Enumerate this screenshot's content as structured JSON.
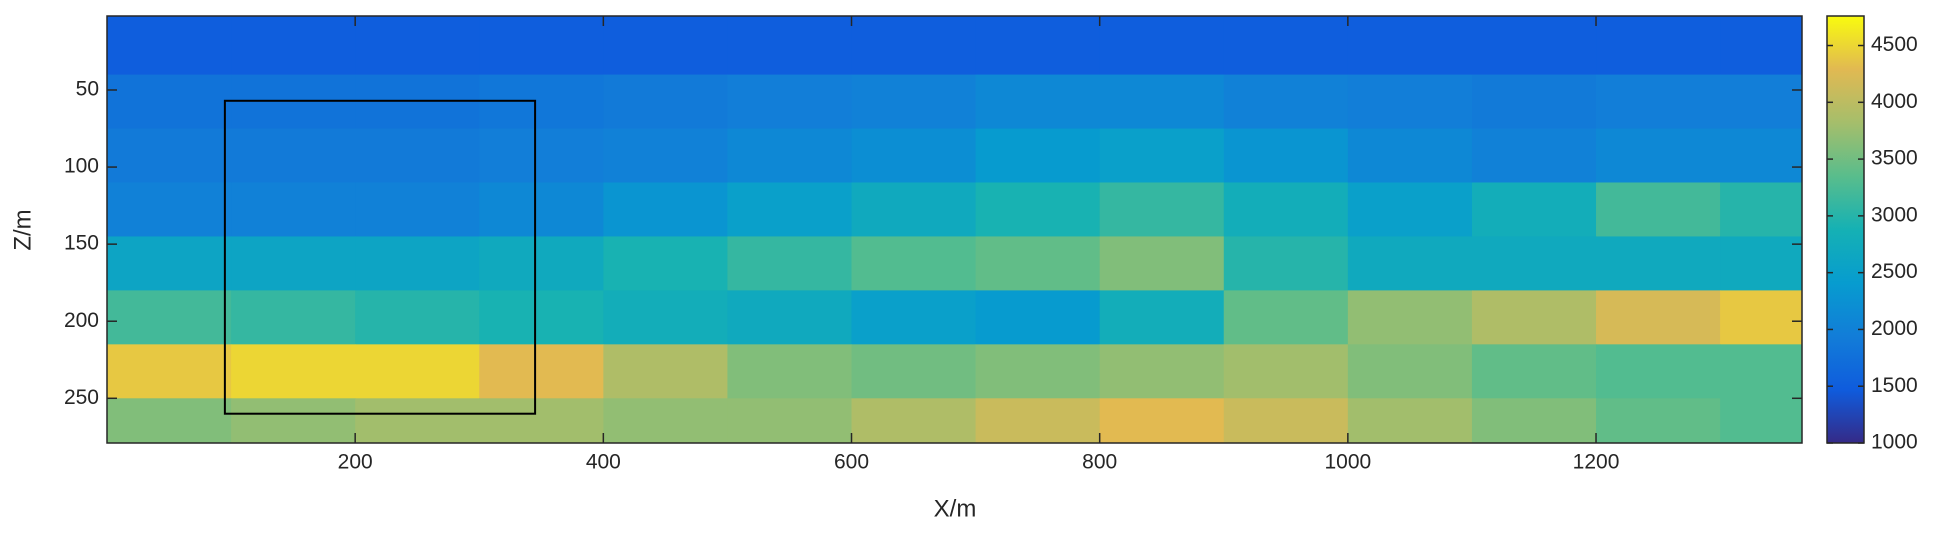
{
  "chart_data": {
    "type": "heatmap",
    "xlabel": "X/m",
    "ylabel": "Z/m",
    "x_edges": [
      0,
      100,
      200,
      300,
      400,
      500,
      600,
      700,
      800,
      900,
      1000,
      1100,
      1200,
      1300,
      1366
    ],
    "y_edges": [
      2,
      40,
      75,
      110,
      145,
      180,
      215,
      250,
      279
    ],
    "z": [
      [
        1500,
        1500,
        1500,
        1500,
        1500,
        1500,
        1500,
        1500,
        1500,
        1500,
        1500,
        1500,
        1500,
        1500
      ],
      [
        1800,
        1800,
        1800,
        1850,
        1900,
        1950,
        2000,
        2100,
        2100,
        2000,
        1950,
        1900,
        1950,
        1950
      ],
      [
        1900,
        1900,
        1900,
        1950,
        2000,
        2100,
        2200,
        2400,
        2500,
        2300,
        2100,
        2000,
        2100,
        2100
      ],
      [
        2000,
        2000,
        2000,
        2100,
        2300,
        2500,
        2700,
        2900,
        3100,
        2800,
        2500,
        2800,
        3200,
        3000
      ],
      [
        2600,
        2600,
        2600,
        2700,
        2900,
        3100,
        3300,
        3400,
        3600,
        3000,
        2700,
        2700,
        2700,
        2700
      ],
      [
        3200,
        3100,
        3000,
        2900,
        2800,
        2700,
        2500,
        2400,
        2800,
        3400,
        3700,
        3900,
        4200,
        4400
      ],
      [
        4400,
        4500,
        4500,
        4300,
        3900,
        3600,
        3500,
        3600,
        3700,
        3800,
        3600,
        3400,
        3300,
        3300
      ],
      [
        3600,
        3700,
        3800,
        3800,
        3700,
        3700,
        3900,
        4100,
        4300,
        4100,
        3800,
        3600,
        3400,
        3300
      ]
    ],
    "xlim": [
      0,
      1366
    ],
    "ylim": [
      2,
      279
    ],
    "y_reversed": true,
    "xticks": [
      200,
      400,
      600,
      800,
      1000,
      1200
    ],
    "yticks": [
      50,
      100,
      150,
      200,
      250
    ],
    "clim": [
      1000,
      4760
    ],
    "cticks": [
      1000,
      1500,
      2000,
      2500,
      3000,
      3500,
      4000,
      4500
    ],
    "colormap": [
      "#352a87",
      "#0f5cdd",
      "#127dd8",
      "#079ccf",
      "#15b1b4",
      "#59bd8c",
      "#a5be6b",
      "#e1b952",
      "#f9fb0e"
    ],
    "highlight_box": {
      "x": [
        95,
        345
      ],
      "y": [
        57,
        260
      ],
      "color": "#000000"
    }
  }
}
